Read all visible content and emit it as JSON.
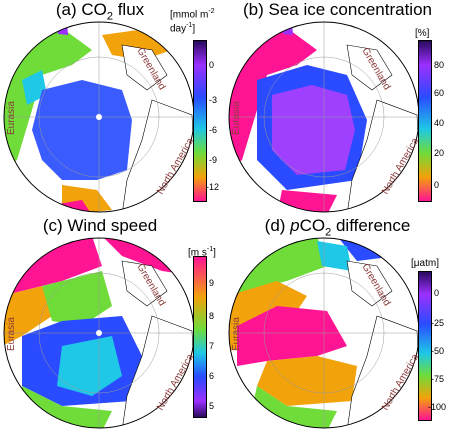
{
  "labels": {
    "eurasia": "Eurasia",
    "greenland": "Greenland",
    "north_america": "North America"
  },
  "panels": [
    {
      "id": "a",
      "title_pre": "(a) CO",
      "title_sub": "2",
      "title_post": " flux",
      "unit_line1": "[mmol m",
      "unit_sup1": "-2",
      "unit_line2": "day",
      "unit_sup2": "-1",
      "unit_end": "]",
      "ticks": [
        "0",
        "-3",
        "-6",
        "-9",
        "-12"
      ],
      "scale": [
        "#2a0a5e",
        "#9b30ff",
        "#2a4bff",
        "#1ec8e6",
        "#6fdc3a",
        "#f2a20a",
        "#ff1493"
      ],
      "land": "#3a5cff"
    },
    {
      "id": "b",
      "title_pre": "(b) Sea ice concentration",
      "title_sub": "",
      "title_post": "",
      "unit_line1": "[%]",
      "ticks": [
        "80",
        "60",
        "40",
        "20",
        "0"
      ],
      "scale": [
        "#2a0a5e",
        "#9b30ff",
        "#2a4bff",
        "#1ec8e6",
        "#6fdc3a",
        "#f2a20a",
        "#ff1493"
      ],
      "land": "#a040ff"
    },
    {
      "id": "c",
      "title_pre": "(c) Wind speed",
      "title_sub": "",
      "title_post": "",
      "unit_line1": "[m s",
      "unit_sup1": "-1",
      "unit_end": "]",
      "ticks": [
        "9",
        "8",
        "7",
        "6",
        "5"
      ],
      "scale": [
        "#ff1493",
        "#f2a20a",
        "#6fdc3a",
        "#1ec8e6",
        "#2a4bff",
        "#9b30ff",
        "#2a0a5e"
      ],
      "land": "#2a4bff"
    },
    {
      "id": "d",
      "title_pre": "(d) ",
      "title_italic": "p",
      "title_mid": "CO",
      "title_sub": "2",
      "title_post": " difference",
      "unit_line1": "[μatm]",
      "ticks": [
        "0",
        "-25",
        "-50",
        "-75",
        "-100"
      ],
      "scale": [
        "#2a0a5e",
        "#9b30ff",
        "#2a4bff",
        "#1ec8e6",
        "#6fdc3a",
        "#f2a20a",
        "#ff1493"
      ],
      "land": "#6fdc3a"
    }
  ]
}
